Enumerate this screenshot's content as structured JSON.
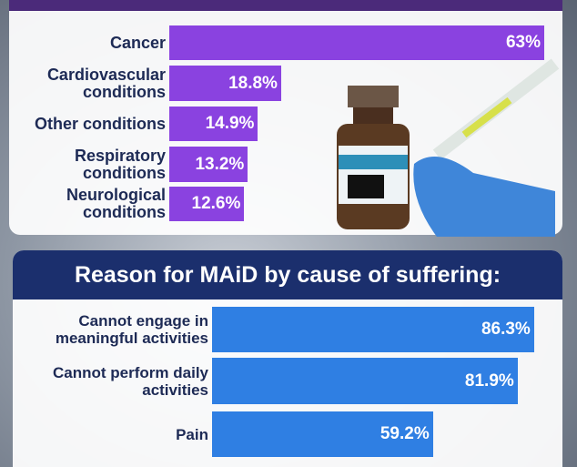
{
  "chart_data": [
    {
      "type": "bar",
      "orientation": "horizontal",
      "color": "#8a42e0",
      "categories": [
        "Cancer",
        "Cardiovascular conditions",
        "Other conditions",
        "Respiratory conditions",
        "Neurological conditions"
      ],
      "values": [
        63,
        18.8,
        14.9,
        13.2,
        12.6
      ],
      "value_labels": [
        "63%",
        "18.8%",
        "14.9%",
        "13.2%",
        "12.6%"
      ]
    },
    {
      "type": "bar",
      "orientation": "horizontal",
      "color": "#2f7fe3",
      "title": "Reason for MAiD by cause of suffering:",
      "categories": [
        "Cannot engage in meaningful activities",
        "Cannot perform daily activities",
        "Pain"
      ],
      "values": [
        86.3,
        81.9,
        59.2
      ],
      "value_labels": [
        "86.3%",
        "81.9%",
        "59.2%"
      ]
    }
  ]
}
